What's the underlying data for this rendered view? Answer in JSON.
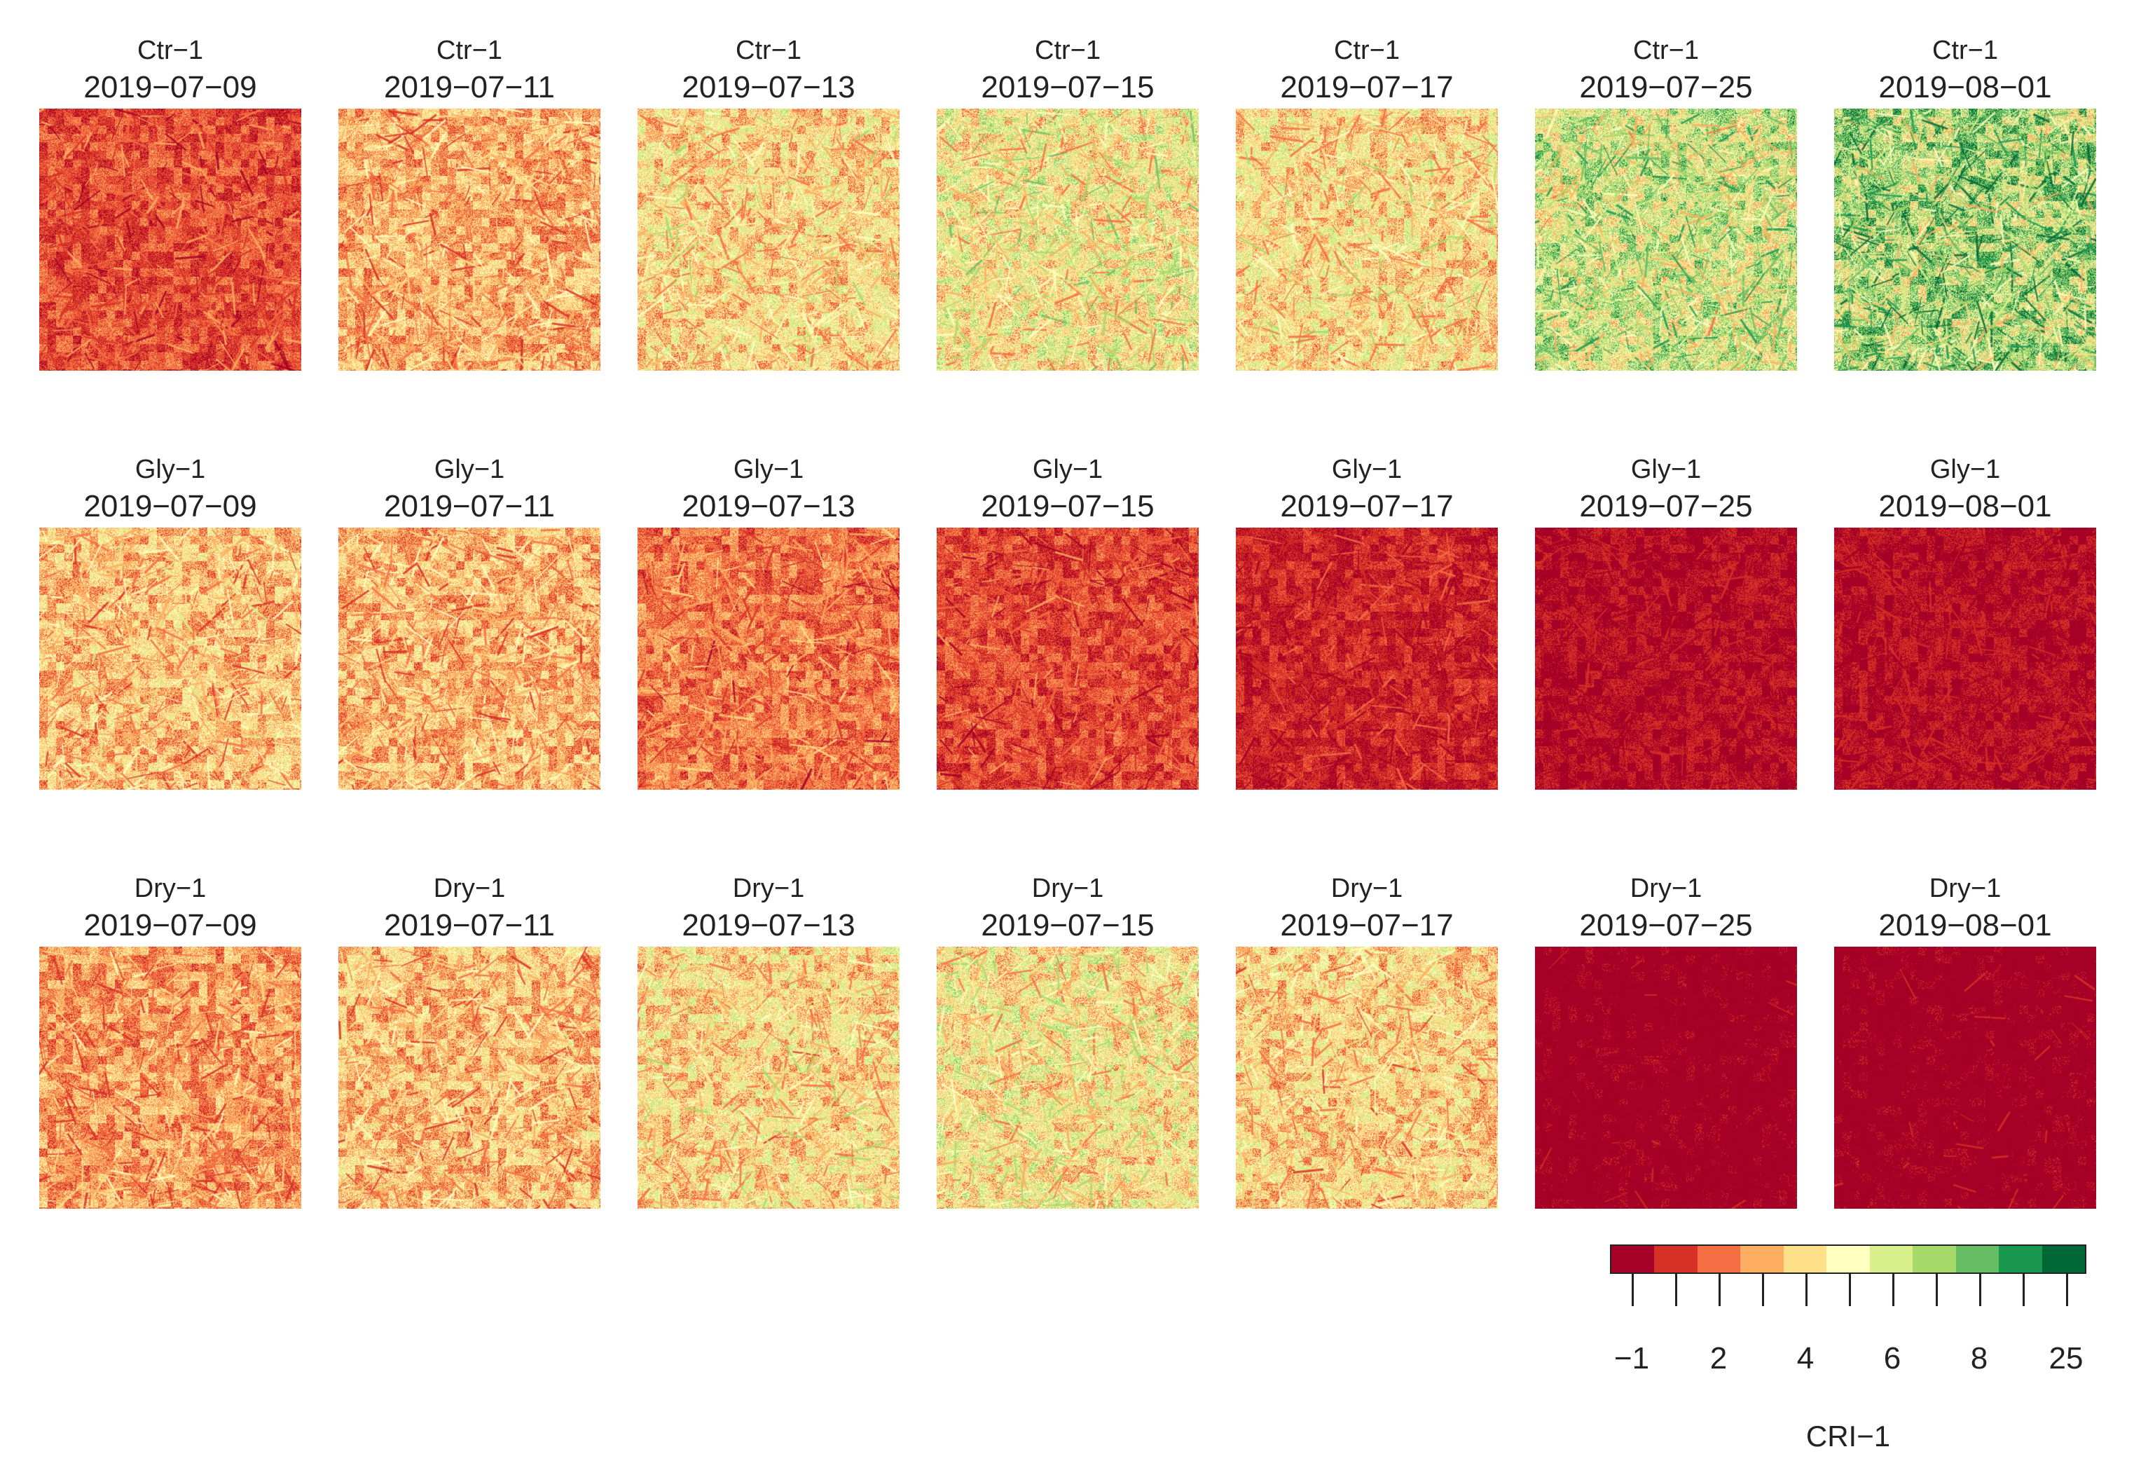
{
  "rows": [
    {
      "treatment": "Ctr−1",
      "panels": [
        {
          "treatment": "Ctr−1",
          "date": "2019−07−09",
          "mean_level": 0.18
        },
        {
          "treatment": "Ctr−1",
          "date": "2019−07−11",
          "mean_level": 0.33
        },
        {
          "treatment": "Ctr−1",
          "date": "2019−07−13",
          "mean_level": 0.42
        },
        {
          "treatment": "Ctr−1",
          "date": "2019−07−15",
          "mean_level": 0.48
        },
        {
          "treatment": "Ctr−1",
          "date": "2019−07−17",
          "mean_level": 0.43
        },
        {
          "treatment": "Ctr−1",
          "date": "2019−07−25",
          "mean_level": 0.58
        },
        {
          "treatment": "Ctr−1",
          "date": "2019−08−01",
          "mean_level": 0.66
        }
      ]
    },
    {
      "treatment": "Gly−1",
      "panels": [
        {
          "treatment": "Gly−1",
          "date": "2019−07−09",
          "mean_level": 0.36
        },
        {
          "treatment": "Gly−1",
          "date": "2019−07−11",
          "mean_level": 0.34
        },
        {
          "treatment": "Gly−1",
          "date": "2019−07−13",
          "mean_level": 0.24
        },
        {
          "treatment": "Gly−1",
          "date": "2019−07−15",
          "mean_level": 0.17
        },
        {
          "treatment": "Gly−1",
          "date": "2019−07−17",
          "mean_level": 0.11
        },
        {
          "treatment": "Gly−1",
          "date": "2019−07−25",
          "mean_level": 0.07
        },
        {
          "treatment": "Gly−1",
          "date": "2019−08−01",
          "mean_level": 0.07
        }
      ]
    },
    {
      "treatment": "Dry−1",
      "panels": [
        {
          "treatment": "Dry−1",
          "date": "2019−07−09",
          "mean_level": 0.3
        },
        {
          "treatment": "Dry−1",
          "date": "2019−07−11",
          "mean_level": 0.36
        },
        {
          "treatment": "Dry−1",
          "date": "2019−07−13",
          "mean_level": 0.42
        },
        {
          "treatment": "Dry−1",
          "date": "2019−07−15",
          "mean_level": 0.46
        },
        {
          "treatment": "Dry−1",
          "date": "2019−07−17",
          "mean_level": 0.4
        },
        {
          "treatment": "Dry−1",
          "date": "2019−07−25",
          "mean_level": 0.03
        },
        {
          "treatment": "Dry−1",
          "date": "2019−08−01",
          "mean_level": 0.03
        }
      ]
    }
  ],
  "legend": {
    "title": "CRI−1",
    "colors": [
      "#a50026",
      "#d73027",
      "#f46d43",
      "#fdae61",
      "#fee08b",
      "#ffffbf",
      "#d9ef8b",
      "#a6d96a",
      "#66bd63",
      "#1a9850",
      "#006837"
    ],
    "tick_labels": [
      "−1",
      "2",
      "4",
      "6",
      "8",
      "25"
    ]
  }
}
